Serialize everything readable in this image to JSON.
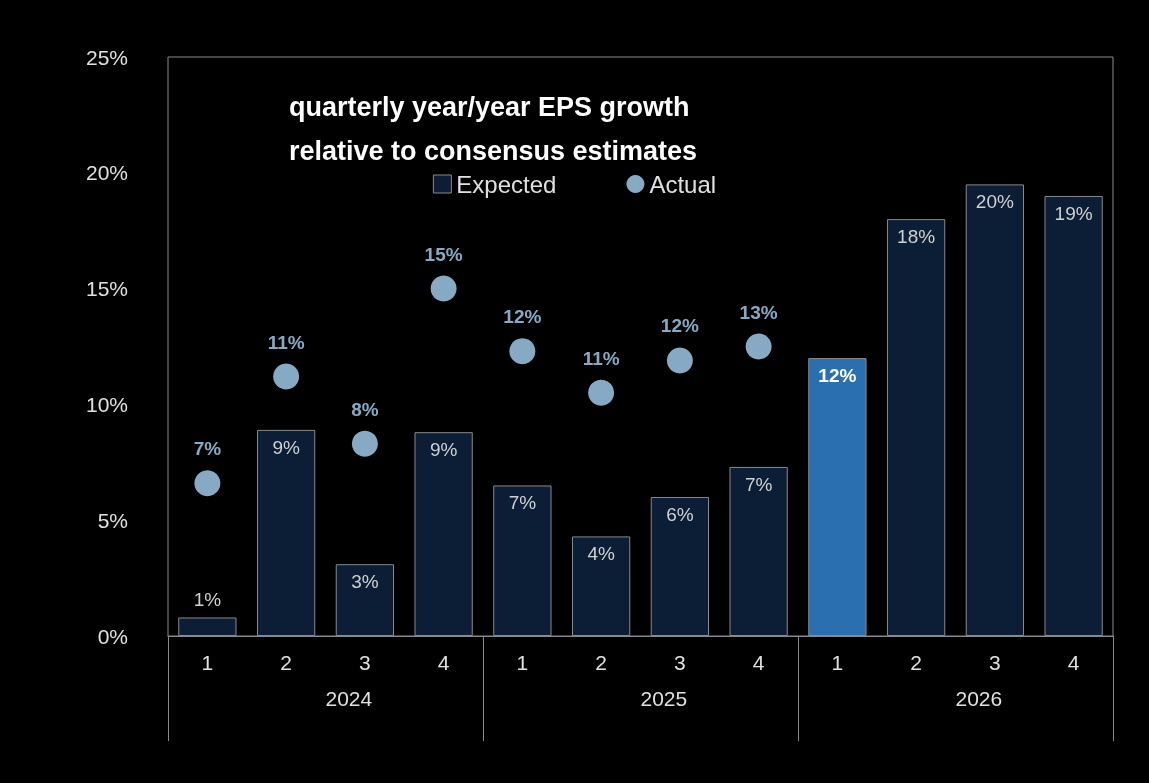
{
  "chart_data": {
    "type": "bar",
    "title": "quarterly year/year EPS growth relative to consensus estimates",
    "categories": [
      "1",
      "2",
      "3",
      "4",
      "1",
      "2",
      "3",
      "4",
      "1",
      "2",
      "3",
      "4"
    ],
    "annotations": [
      "2024",
      "2025",
      "2026"
    ],
    "series": [
      {
        "name": "Expected",
        "color": "#0b1e35",
        "colors": [
          "#0b1e35",
          "#0b1e35",
          "#0b1e35",
          "#0b1e35",
          "#0b1e35",
          "#0b1e35",
          "#0b1e35",
          "#0b1e35",
          "#2a6fb0",
          "#0b1e35",
          "#0b1e35",
          "#0b1e35"
        ],
        "values": [
          0.8,
          8.9,
          3.1,
          8.8,
          6.5,
          4.3,
          6.0,
          7.3,
          12.0,
          18.0,
          19.5,
          19.0
        ],
        "value_labels": [
          "1%",
          "9%",
          "3%",
          "9%",
          "7%",
          "4%",
          "6%",
          "7%",
          "12%",
          "18%",
          "20%",
          "19%"
        ]
      },
      {
        "name": "Actual",
        "type": "scatter",
        "color": "#a9d4f5",
        "values": [
          6.6,
          11.2,
          8.3,
          15.0,
          12.3,
          10.5,
          11.9,
          12.5,
          null,
          null,
          null,
          null
        ],
        "value_labels": [
          "7%",
          "11%",
          "8%",
          "15%",
          "12%",
          "11%",
          "12%",
          "13%",
          null,
          null,
          null,
          null
        ]
      }
    ],
    "ylim": [
      0,
      25
    ],
    "yticks": [
      {
        "value": 0,
        "label": "0%"
      },
      {
        "value": 5,
        "label": "5%"
      },
      {
        "value": 10,
        "label": "10%"
      },
      {
        "value": 15,
        "label": "15%"
      },
      {
        "value": 20,
        "label": "20%"
      },
      {
        "value": 25,
        "label": "25%"
      }
    ],
    "grid": false,
    "legend": "top",
    "marker": "circle"
  }
}
